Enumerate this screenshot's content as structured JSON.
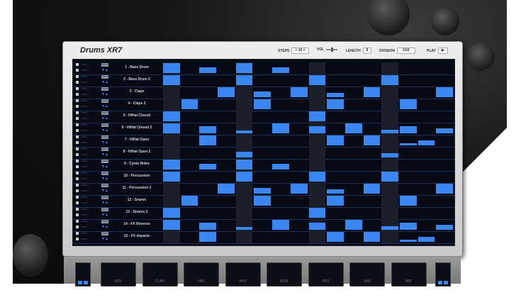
{
  "app": {
    "title": "Drums XR7"
  },
  "header": {
    "steps_label": "STEPS",
    "steps_value": "< 16 >",
    "vol_label": "VOL",
    "length_label": "LENGTH",
    "length_value": "8",
    "division_label": "DIVISION",
    "division_value": "1/16",
    "play_label": "PLAY",
    "play_icon": "▶"
  },
  "colors": {
    "accent": "#3a86f2",
    "panel": "#060a14",
    "frame": "#d9d9d9"
  },
  "track_controls": {
    "solo": "SOLO",
    "meter": "====  |",
    "arrows": "▼▲"
  },
  "tracks": [
    {
      "name": "1 - Bass Drum",
      "steps": [
        1,
        0,
        0.6,
        0,
        1,
        0,
        0.6,
        0,
        0,
        0,
        0,
        0,
        0,
        0,
        0,
        0
      ]
    },
    {
      "name": "2 - Bass Drum 2",
      "steps": [
        1,
        0,
        0,
        0,
        1,
        0,
        0,
        0,
        1,
        0,
        0,
        0,
        1,
        0,
        0,
        0
      ]
    },
    {
      "name": "3 - Claps",
      "steps": [
        0,
        0,
        0,
        1,
        0,
        0.6,
        0,
        1,
        0,
        0.4,
        0,
        1,
        0,
        0,
        0,
        1
      ]
    },
    {
      "name": "4 - Claps 2",
      "steps": [
        0,
        1,
        0,
        0,
        0,
        1,
        0,
        0,
        0,
        1,
        0,
        0,
        0,
        1,
        0,
        0
      ]
    },
    {
      "name": "5 - HiHat Closed",
      "steps": [
        1,
        0,
        0,
        0,
        0,
        0,
        0,
        0,
        1,
        0,
        0,
        0,
        0,
        0,
        0,
        0
      ]
    },
    {
      "name": "6 - HiHat Closed 2",
      "steps": [
        1,
        0,
        0.7,
        0,
        0.25,
        0,
        1,
        0,
        0.7,
        0,
        1,
        0,
        0.35,
        0.7,
        0,
        0.5
      ]
    },
    {
      "name": "7 - HiHat Open",
      "steps": [
        0,
        0,
        1,
        0,
        0,
        0,
        0,
        0,
        0,
        1,
        0,
        1,
        0,
        0.2,
        0.5,
        0
      ]
    },
    {
      "name": "8 - HiHat Open 2",
      "steps": [
        0,
        0,
        0,
        0,
        0.6,
        0,
        0,
        0,
        0,
        0,
        0,
        0,
        0.45,
        0,
        0,
        0
      ]
    },
    {
      "name": "9 - Cymb Rides",
      "steps": [
        1,
        0,
        0.6,
        0,
        1,
        0,
        0.6,
        0,
        0,
        0,
        0,
        0,
        0,
        0,
        0,
        0
      ]
    },
    {
      "name": "10 - Percussion",
      "steps": [
        1,
        0,
        0,
        0,
        1,
        0,
        0,
        0,
        1,
        0,
        0,
        0,
        1,
        0,
        0,
        0
      ]
    },
    {
      "name": "11 - Percussion 2",
      "steps": [
        0,
        0,
        0,
        1,
        0,
        0.6,
        0,
        1,
        0,
        0.4,
        0,
        1,
        0,
        0,
        0,
        1
      ]
    },
    {
      "name": "12 - Snares",
      "steps": [
        0,
        1,
        0,
        0,
        0,
        1,
        0,
        0,
        0,
        1,
        0,
        0,
        0,
        1,
        0,
        0
      ]
    },
    {
      "name": "13 - Snares 2",
      "steps": [
        1,
        0,
        0,
        0,
        0,
        0,
        0,
        0,
        1,
        0,
        0,
        0,
        0,
        0,
        0,
        0
      ]
    },
    {
      "name": "14 - FX Reverse",
      "steps": [
        1,
        0,
        0.7,
        0,
        0.25,
        0,
        1,
        0,
        0.7,
        0,
        1,
        0,
        0.35,
        0.7,
        0,
        0.5
      ]
    },
    {
      "name": "15 - FX Impacts",
      "steps": [
        0,
        0,
        1,
        0,
        0,
        0,
        0,
        0,
        0,
        1,
        0,
        1,
        0,
        0.2,
        0.5,
        0
      ]
    }
  ],
  "pads": [
    "BD1",
    "CLAP",
    "HH1",
    "HH1",
    "RIDE",
    "PR2",
    "SN2",
    "IMP"
  ]
}
